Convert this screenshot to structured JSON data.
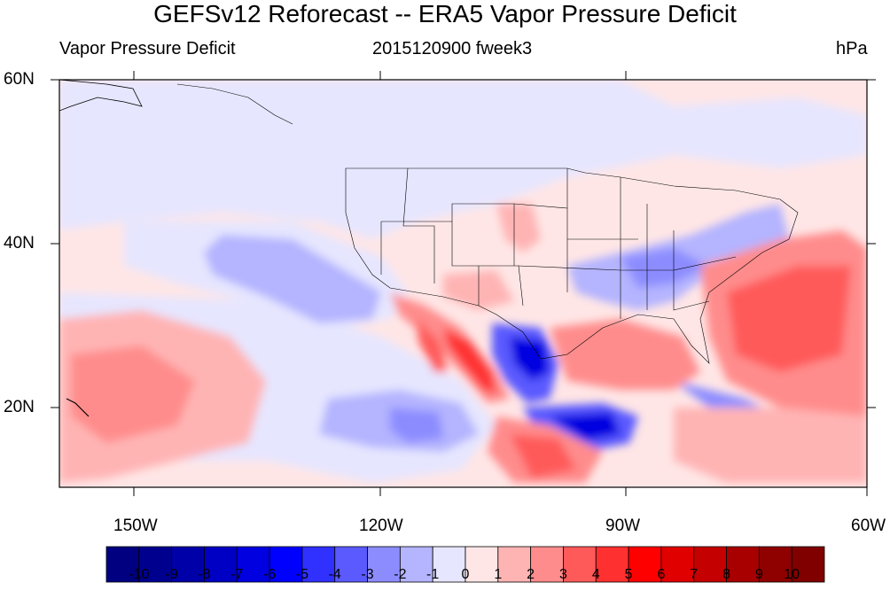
{
  "title": "GEFSv12 Reforecast -- ERA5 Vapor Pressure Deficit",
  "subtitle_left": "Vapor Pressure Deficit",
  "subtitle_center": "2015120900 fweek3",
  "subtitle_right": "hPa",
  "lon_labels": [
    "150W",
    "120W",
    "90W",
    "60W"
  ],
  "lat_labels": [
    "60N",
    "40N",
    "20N"
  ],
  "colorbar": {
    "labels": [
      "-10",
      "-9",
      "-8",
      "-7",
      "-6",
      "-5",
      "-4",
      "-3",
      "-2",
      "-1",
      "0",
      "1",
      "2",
      "3",
      "4",
      "5",
      "6",
      "7",
      "8",
      "9",
      "10"
    ],
    "colors": [
      "#000080",
      "#00008f",
      "#0000a8",
      "#0000c4",
      "#0000e0",
      "#0000ff",
      "#3030ff",
      "#5a5aff",
      "#8c8cff",
      "#b4b4ff",
      "#e6e6ff",
      "#ffe6e6",
      "#ffb4b4",
      "#ff8c8c",
      "#ff5a5a",
      "#ff3030",
      "#ff0000",
      "#e00000",
      "#c40000",
      "#a80000",
      "#8f0000",
      "#800000"
    ]
  },
  "map_colors": {
    "land_outline": "#000000",
    "neutral_pos": "#ffe6e6",
    "neutral_neg": "#e6e6ff"
  }
}
